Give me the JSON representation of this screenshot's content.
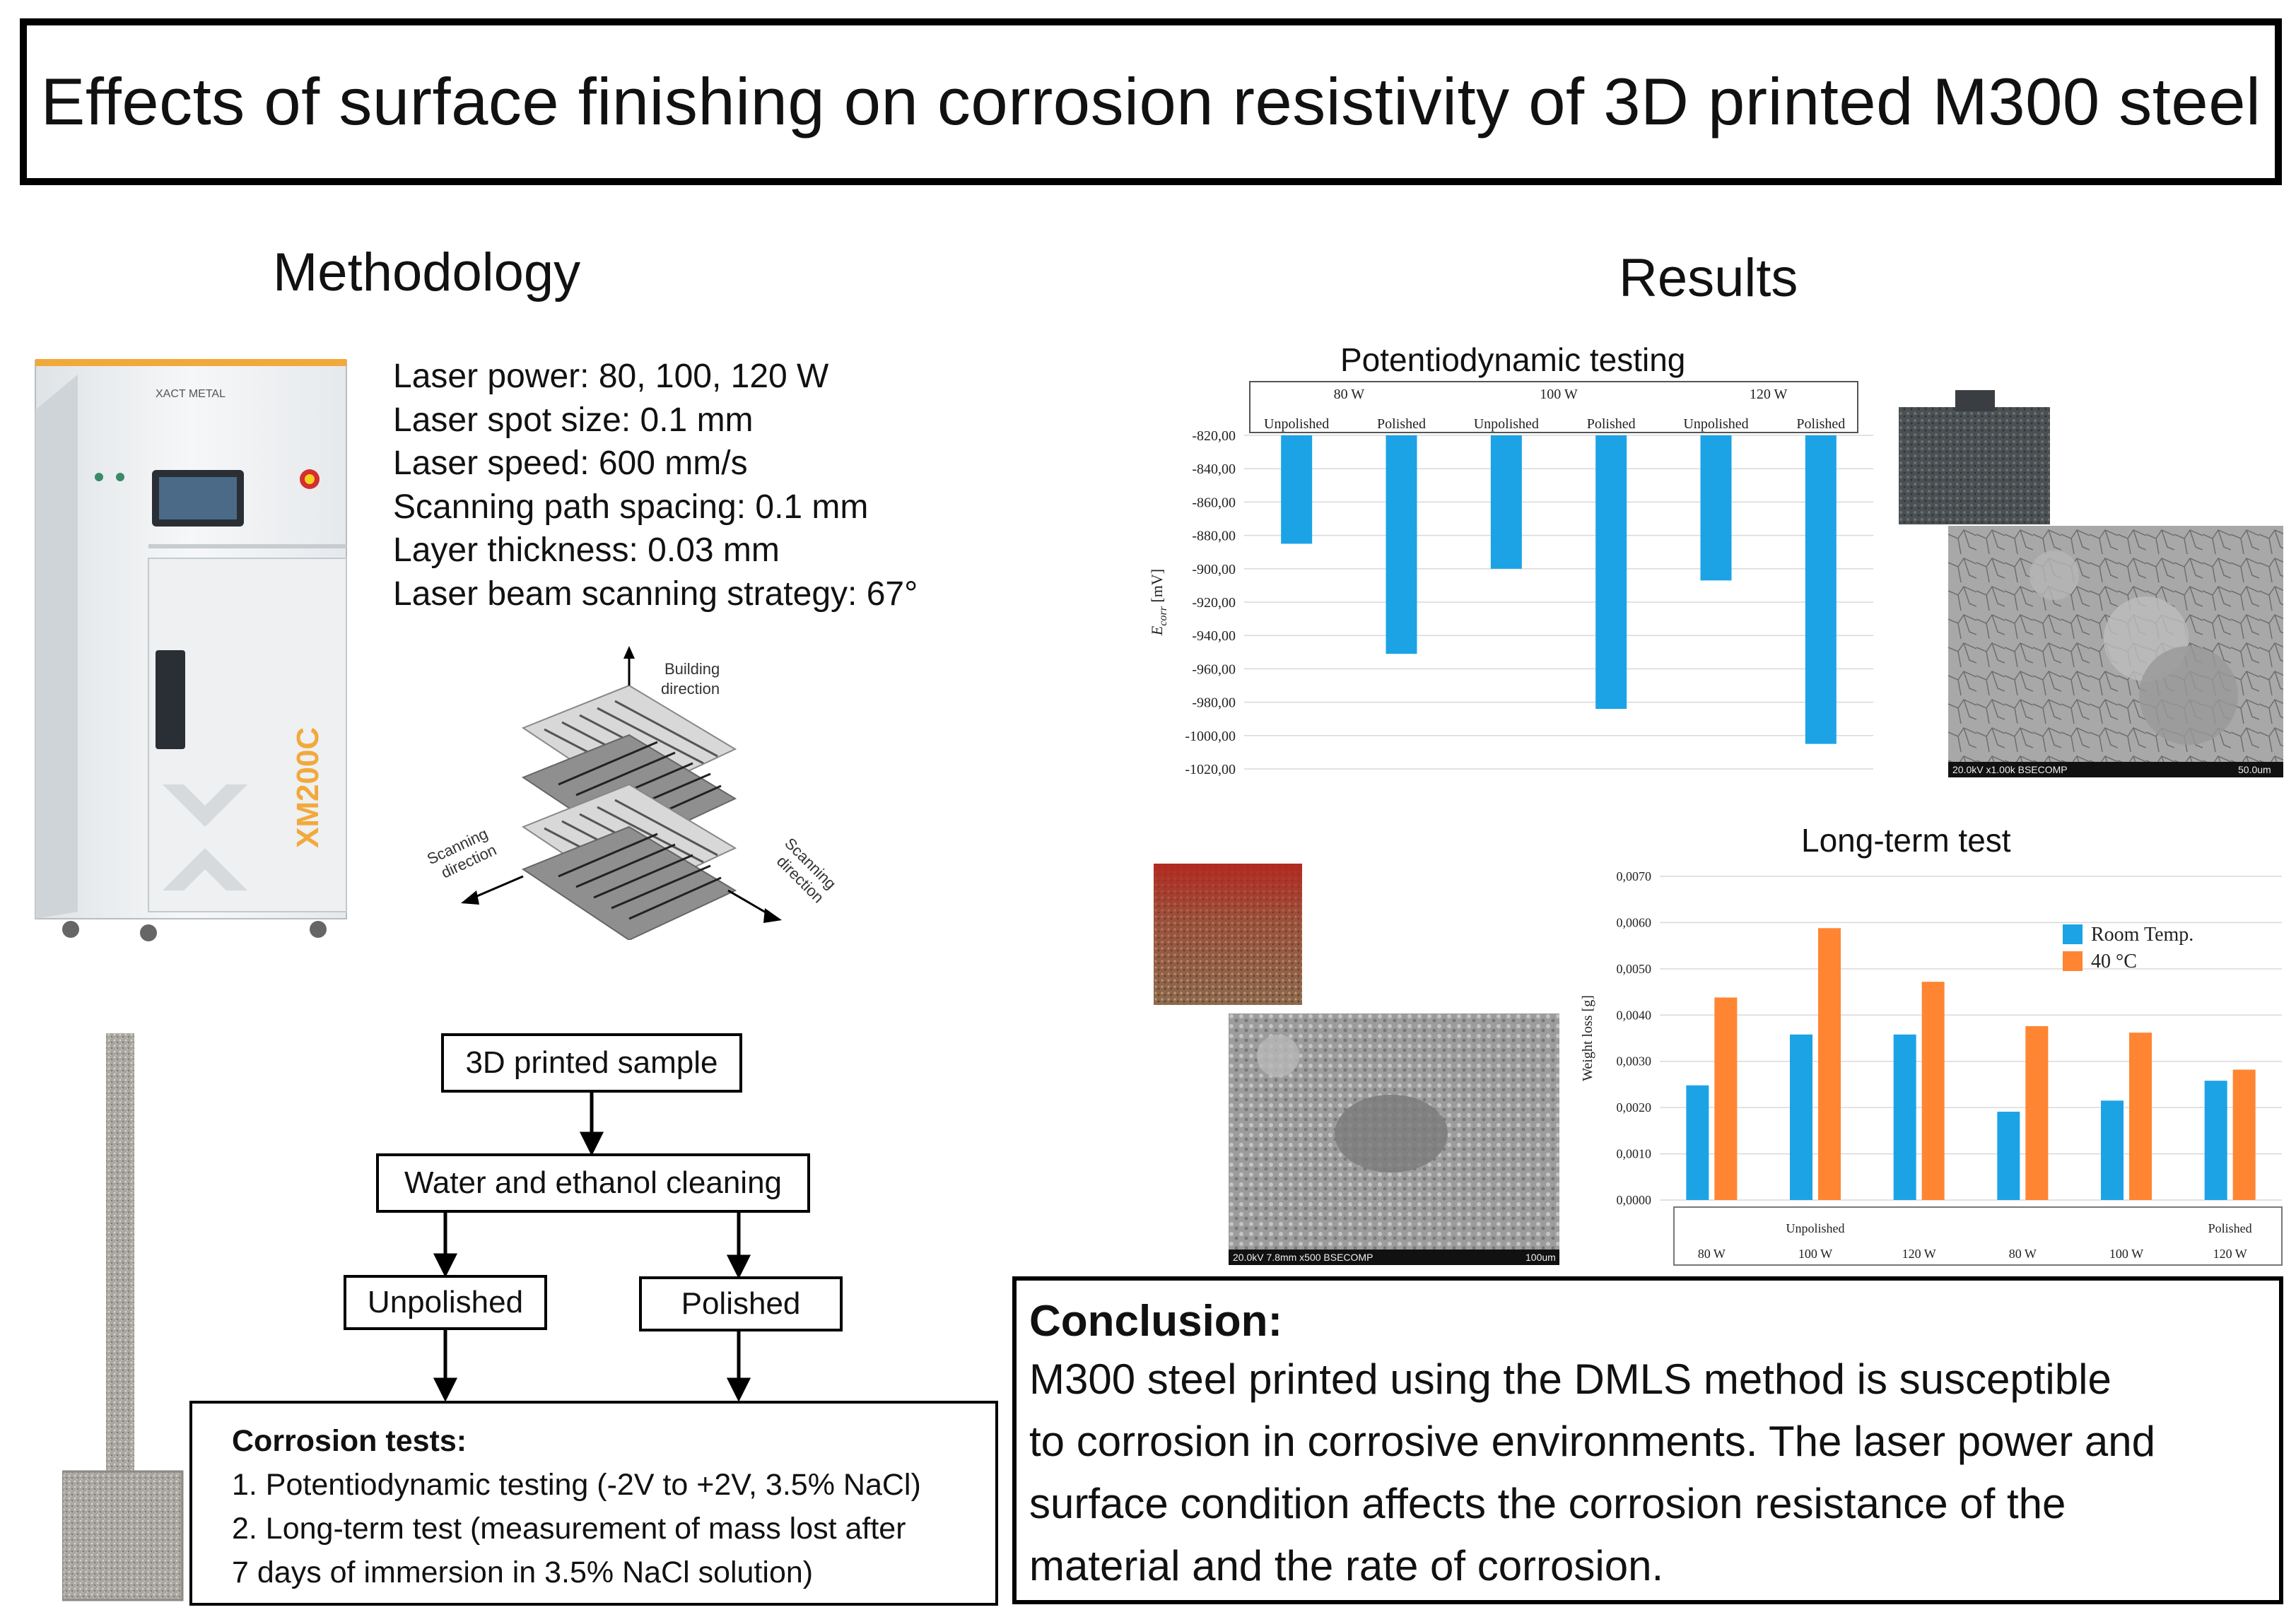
{
  "title": "Effects of surface finishing on corrosion resistivity of 3D printed M300 steel",
  "methodology": {
    "heading": "Methodology",
    "printer": {
      "brand": "XACT METAL",
      "model": "XM200C"
    },
    "parameters": [
      "Laser power: 80, 100, 120 W",
      "Laser spot size: 0.1 mm",
      "Laser speed: 600 mm/s",
      "Scanning path spacing: 0.1 mm",
      "Layer thickness: 0.03 mm",
      "Laser beam scanning strategy: 67°"
    ],
    "scan_diagram": {
      "building_direction": [
        "Building",
        "direction"
      ],
      "scanning_left": [
        "Scanning",
        "direction"
      ],
      "scanning_right": [
        "Scanning",
        "direction"
      ]
    },
    "flowchart": {
      "step1": "3D printed sample",
      "step2": "Water and ethanol cleaning",
      "branch_left": "Unpolished",
      "branch_right": "Polished",
      "corrosion_title": "Corrosion tests:",
      "corrosion_items": [
        "1. Potentiodynamic testing (-2V to +2V, 3.5% NaCl)",
        "2. Long-term test (measurement of mass lost after",
        "7 days of immersion in 3.5% NaCl solution)"
      ]
    }
  },
  "results": {
    "heading": "Results",
    "sem_top_caption_left": "20.0kV x1.00k BSECOMP",
    "sem_top_caption_right": "50.0um",
    "sem_bottom_caption_left": "20.0kV 7.8mm x500 BSECOMP",
    "sem_bottom_caption_right": "100um"
  },
  "chart_data": [
    {
      "type": "bar",
      "title": "Potentiodynamic testing",
      "group_labels": [
        "80 W",
        "100 W",
        "120 W"
      ],
      "categories": [
        "Unpolished",
        "Polished",
        "Unpolished",
        "Polished",
        "Unpolished",
        "Polished"
      ],
      "values": [
        -885,
        -951,
        -900,
        -984,
        -907,
        -1005
      ],
      "ylabel_main": "E",
      "ylabel_sub": "corr",
      "ylabel_unit": " [mV]",
      "yticks": [
        "-820,00",
        "-840,00",
        "-860,00",
        "-880,00",
        "-900,00",
        "-920,00",
        "-940,00",
        "-960,00",
        "-980,00",
        "-1000,00",
        "-1020,00"
      ],
      "ylim": [
        -1020,
        -820
      ],
      "color": "#1ca3e6",
      "grid": true
    },
    {
      "type": "bar",
      "title": "Long-term test",
      "ylabel": "Weight loss [g]",
      "categories": [
        "80 W",
        "100 W",
        "120 W",
        "80 W",
        "100 W",
        "120 W"
      ],
      "group_labels": [
        "Unpolished",
        "Polished"
      ],
      "series": [
        {
          "name": "Room Temp.",
          "color": "#1ca3e6",
          "values": [
            0.00248,
            0.00358,
            0.00358,
            0.00191,
            0.00215,
            0.00258
          ]
        },
        {
          "name": "40 °C",
          "color": "#ff8533",
          "values": [
            0.00438,
            0.00588,
            0.00472,
            0.00376,
            0.00362,
            0.00282
          ]
        }
      ],
      "yticks": [
        "0,0070",
        "0,0060",
        "0,0050",
        "0,0040",
        "0,0030",
        "0,0020",
        "0,0010",
        "0,0000"
      ],
      "ylim": [
        0,
        0.007
      ],
      "legend": "top-right",
      "grid": true
    }
  ],
  "conclusion": {
    "title": "Conclusion:",
    "lines": [
      "M300 steel printed using the DMLS method is susceptible",
      "to corrosion in corrosive environments. The laser power and",
      "surface condition affects the corrosion resistance of the",
      "material and the rate of corrosion."
    ]
  }
}
